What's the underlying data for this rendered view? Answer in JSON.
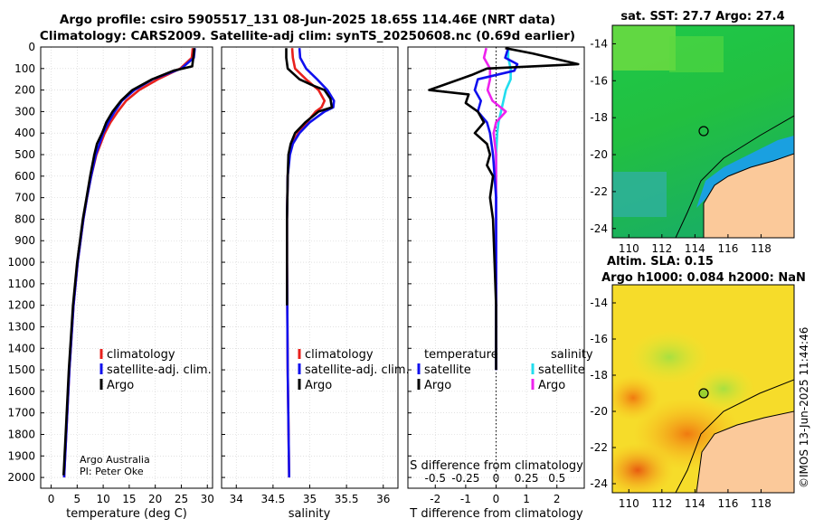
{
  "title_line1": "Argo profile: csiro 5905517_131 08-Jun-2025 18.65S 114.46E (NRT data)",
  "title_line2": "Climatology: CARS2009. Satellite-adj clim: synTS_20250608.nc (0.69d earlier)",
  "credit_line1": "Argo Australia",
  "credit_line2": "PI: Peter Oke",
  "watermark": "©IMOS 13-Jun-2025 11:44:46",
  "map_sst_title": "sat. SST: 27.7 Argo: 27.4",
  "map_sla_title1": "Altim. SLA: 0.15",
  "map_sla_title2": "Argo h1000: 0.084 h2000: NaN",
  "colors": {
    "climatology": "#e8201c",
    "satellite_adj": "#1010ee",
    "argo": "#000000",
    "sat_sal": "#22ddee",
    "argo_sal": "#ee22ee"
  },
  "chart_data": [
    {
      "type": "line",
      "name": "temperature",
      "xlabel": "temperature (deg C)",
      "ylabel": "",
      "xlim": [
        -2,
        31
      ],
      "ylim": [
        2050,
        0
      ],
      "xticks": [
        "0",
        "5",
        "10",
        "15",
        "20",
        "25",
        "30"
      ],
      "yticks": [
        "0",
        "100",
        "200",
        "300",
        "400",
        "500",
        "600",
        "700",
        "800",
        "900",
        "1000",
        "1100",
        "1200",
        "1300",
        "1400",
        "1500",
        "1600",
        "1700",
        "1800",
        "1900",
        "2000"
      ],
      "legend": [
        "climatology",
        "satellite-adj. clim.",
        "Argo"
      ],
      "series": [
        {
          "name": "climatology",
          "depth": [
            5,
            50,
            100,
            150,
            200,
            250,
            300,
            350,
            400,
            450,
            500,
            600,
            700,
            800,
            1000,
            1200,
            1500,
            1800,
            2000
          ],
          "values": [
            27.2,
            27.0,
            24.8,
            20.5,
            16.9,
            14.4,
            12.8,
            11.4,
            10.3,
            9.5,
            8.7,
            7.7,
            6.9,
            6.2,
            5.1,
            4.3,
            3.5,
            2.9,
            2.5
          ]
        },
        {
          "name": "satellite-adj. clim.",
          "depth": [
            5,
            50,
            100,
            150,
            200,
            250,
            300,
            350,
            400,
            450,
            500,
            600,
            700,
            800,
            1000,
            1200,
            1500,
            1800,
            2000
          ],
          "values": [
            27.6,
            27.4,
            25.0,
            19.5,
            16.0,
            13.6,
            12.2,
            11.0,
            10.0,
            9.3,
            8.6,
            7.7,
            6.9,
            6.2,
            5.1,
            4.3,
            3.5,
            2.9,
            2.5
          ]
        },
        {
          "name": "Argo",
          "depth": [
            5,
            50,
            90,
            110,
            150,
            200,
            250,
            300,
            350,
            400,
            450,
            500,
            600,
            700,
            800,
            1000,
            1200,
            1500,
            1800,
            1990
          ],
          "values": [
            27.5,
            27.3,
            27.1,
            23.5,
            19.4,
            15.6,
            13.4,
            11.8,
            10.6,
            9.8,
            8.8,
            8.3,
            7.5,
            6.8,
            6.1,
            5.0,
            4.2,
            3.4,
            2.8,
            2.4
          ]
        }
      ]
    },
    {
      "type": "line",
      "name": "salinity",
      "xlabel": "salinity",
      "xlim": [
        33.8,
        36.2
      ],
      "ylim": [
        2050,
        0
      ],
      "xticks": [
        "34",
        "34.5",
        "35",
        "35.5",
        "36"
      ],
      "legend": [
        "climatology",
        "satellite-adj. clim.",
        "Argo"
      ],
      "series": [
        {
          "name": "climatology",
          "depth": [
            5,
            50,
            100,
            150,
            200,
            250,
            280,
            300,
            350,
            400,
            450,
            500,
            600,
            800,
            1000,
            1500,
            2000
          ],
          "values": [
            34.76,
            34.77,
            34.8,
            34.95,
            35.12,
            35.2,
            35.16,
            35.08,
            34.96,
            34.84,
            34.76,
            34.72,
            34.7,
            34.69,
            34.69,
            34.7,
            34.72
          ]
        },
        {
          "name": "satellite-adj. clim.",
          "depth": [
            5,
            50,
            100,
            150,
            200,
            250,
            280,
            300,
            350,
            400,
            450,
            500,
            600,
            800,
            1000,
            1500,
            2000
          ],
          "values": [
            34.86,
            34.87,
            34.95,
            35.1,
            35.24,
            35.33,
            35.32,
            35.2,
            35.0,
            34.86,
            34.77,
            34.73,
            34.7,
            34.69,
            34.69,
            34.7,
            34.72
          ]
        },
        {
          "name": "Argo",
          "depth": [
            5,
            50,
            100,
            150,
            180,
            200,
            240,
            280,
            300,
            350,
            400,
            450,
            500,
            600,
            800,
            1000,
            1200
          ],
          "values": [
            34.68,
            34.68,
            34.7,
            34.86,
            35.05,
            35.2,
            35.28,
            35.3,
            35.12,
            34.94,
            34.8,
            34.74,
            34.71,
            34.7,
            34.69,
            34.69,
            34.69
          ]
        }
      ]
    },
    {
      "type": "line",
      "name": "differences",
      "xlabel": "T difference from climatology",
      "xlabel_top": "S difference from climatology",
      "xlim": [
        -2.9,
        2.9
      ],
      "ylim": [
        2050,
        0
      ],
      "xticks": [
        "-2",
        "-1",
        "0",
        "1",
        "2"
      ],
      "xticks_top": [
        "-0.5",
        "-0.25",
        "0",
        "0.25",
        "0.5"
      ],
      "legend_t_title": "temperature",
      "legend_s_title": "salinity",
      "legend_t": [
        "satellite",
        "Argo"
      ],
      "legend_s": [
        "satellite",
        "Argo"
      ],
      "series": [
        {
          "name": "T satellite",
          "depth": [
            5,
            50,
            80,
            110,
            150,
            200,
            250,
            300,
            350,
            400,
            500,
            700,
            1000,
            1500
          ],
          "values": [
            0.4,
            0.3,
            0.7,
            0.6,
            -0.6,
            -0.7,
            -0.5,
            -0.6,
            -0.3,
            -0.2,
            -0.1,
            0.0,
            0.0,
            0.0
          ]
        },
        {
          "name": "T Argo",
          "depth": [
            5,
            30,
            80,
            100,
            130,
            200,
            220,
            260,
            300,
            350,
            400,
            450,
            500,
            550,
            600,
            700,
            800,
            1000,
            1200,
            1500
          ],
          "values": [
            0.3,
            1.2,
            2.7,
            -0.3,
            -0.8,
            -2.2,
            -0.9,
            -1.0,
            -0.6,
            -0.4,
            -0.7,
            -0.3,
            -0.2,
            -0.3,
            -0.1,
            -0.2,
            -0.1,
            -0.05,
            0.0,
            0.0
          ]
        },
        {
          "name": "S satellite",
          "depth": [
            5,
            50,
            100,
            150,
            200,
            250,
            300,
            350,
            400,
            500,
            700,
            1000,
            1500
          ],
          "values": [
            0.1,
            0.1,
            0.12,
            0.12,
            0.08,
            0.06,
            0.04,
            0.02,
            0.01,
            0.0,
            0.0,
            0.0,
            0.0
          ]
        },
        {
          "name": "S Argo",
          "depth": [
            5,
            50,
            100,
            150,
            200,
            250,
            300,
            350,
            400,
            500,
            700,
            1000,
            1500
          ],
          "values": [
            -0.08,
            -0.1,
            -0.05,
            -0.05,
            -0.07,
            -0.03,
            0.08,
            0.0,
            -0.02,
            0.0,
            0.0,
            0.0,
            0.0
          ]
        }
      ]
    },
    {
      "type": "heatmap",
      "name": "sst-map",
      "title": "sat. SST: 27.7 Argo: 27.4",
      "xticks": [
        "110",
        "112",
        "114",
        "116",
        "118"
      ],
      "yticks": [
        "-14",
        "-16",
        "-18",
        "-20",
        "-22",
        "-24"
      ],
      "xlim": [
        109,
        120
      ],
      "ylim": [
        -24.5,
        -13
      ],
      "marker": [
        114.46,
        -18.65
      ]
    },
    {
      "type": "heatmap",
      "name": "sla-map",
      "title": "Altim. SLA: 0.15",
      "xticks": [
        "110",
        "112",
        "114",
        "116",
        "118"
      ],
      "yticks": [
        "-14",
        "-16",
        "-18",
        "-20",
        "-22",
        "-24"
      ],
      "xlim": [
        109,
        120
      ],
      "ylim": [
        -24.5,
        -13
      ],
      "marker": [
        114.46,
        -18.65
      ]
    }
  ]
}
